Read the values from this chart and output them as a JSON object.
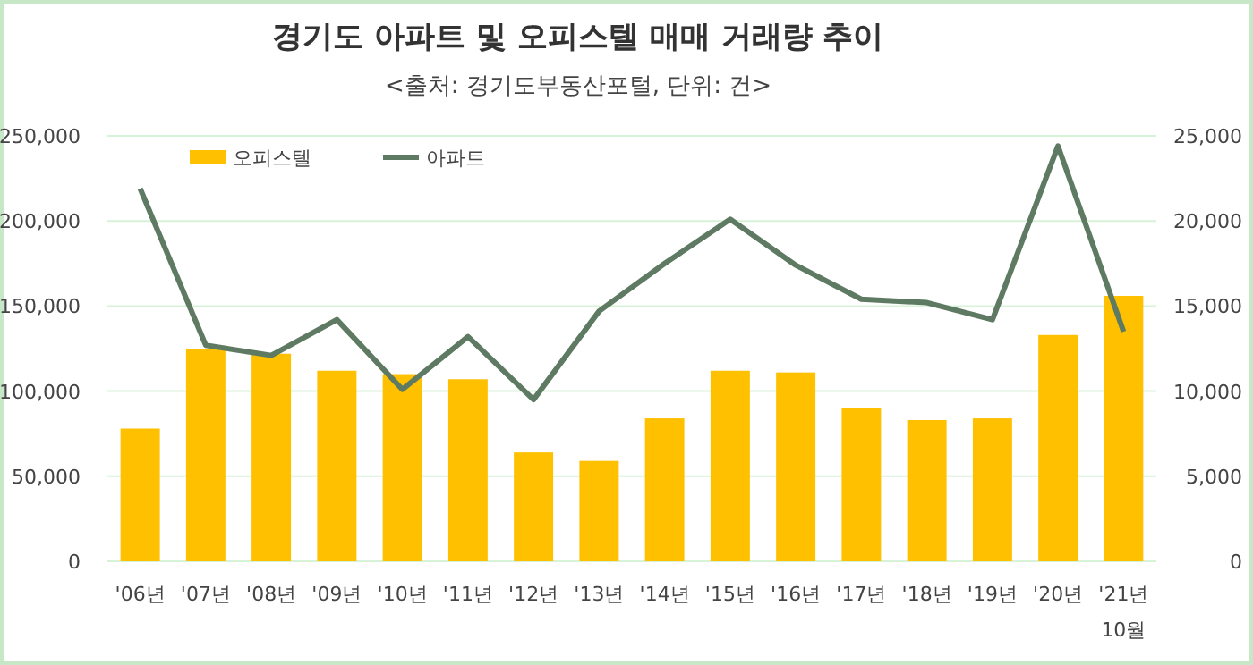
{
  "chart_data": {
    "type": "bar",
    "title": "경기도 아파트 및 오피스텔  매매 거래량 추이",
    "subtitle": "<출처: 경기도부동산포털, 단위: 건>",
    "categories": [
      "'06년",
      "'07년",
      "'08년",
      "'09년",
      "'10년",
      "'11년",
      "'12년",
      "'13년",
      "'14년",
      "'15년",
      "'16년",
      "'17년",
      "'18년",
      "'19년",
      "'20년",
      "'21년 10월"
    ],
    "series": [
      {
        "name": "오피스텔",
        "axis": "y2",
        "color": "#ffc000",
        "values": [
          7800,
          12500,
          12200,
          11200,
          11000,
          10700,
          6400,
          5900,
          8400,
          11200,
          11100,
          9000,
          8300,
          8400,
          13300,
          15600
        ]
      },
      {
        "name": "아파트",
        "type": "line",
        "color": "#5f7a63",
        "values": [
          219000,
          127000,
          121000,
          142000,
          101000,
          132000,
          95000,
          147000,
          175000,
          201000,
          174000,
          154000,
          152000,
          142000,
          244000,
          135000
        ]
      }
    ],
    "ylim": [
      0,
      250000
    ],
    "yticks": [
      {
        "value": 0,
        "label": "0"
      },
      {
        "value": 50000,
        "label": "50,000"
      },
      {
        "value": 100000,
        "label": "100,000"
      },
      {
        "value": 150000,
        "label": "150,000"
      },
      {
        "value": 200000,
        "label": "200,000"
      },
      {
        "value": 250000,
        "label": "250,000"
      }
    ],
    "y2lim": [
      0,
      25000
    ],
    "y2ticks": [
      {
        "value": 0,
        "label": "0"
      },
      {
        "value": 5000,
        "label": "5,000"
      },
      {
        "value": 10000,
        "label": "10,000"
      },
      {
        "value": 15000,
        "label": "15,000"
      },
      {
        "value": 20000,
        "label": "20,000"
      },
      {
        "value": 25000,
        "label": "25,000"
      }
    ],
    "grid": "y",
    "legend": "top left",
    "marker": "none",
    "line_style": "solid"
  }
}
